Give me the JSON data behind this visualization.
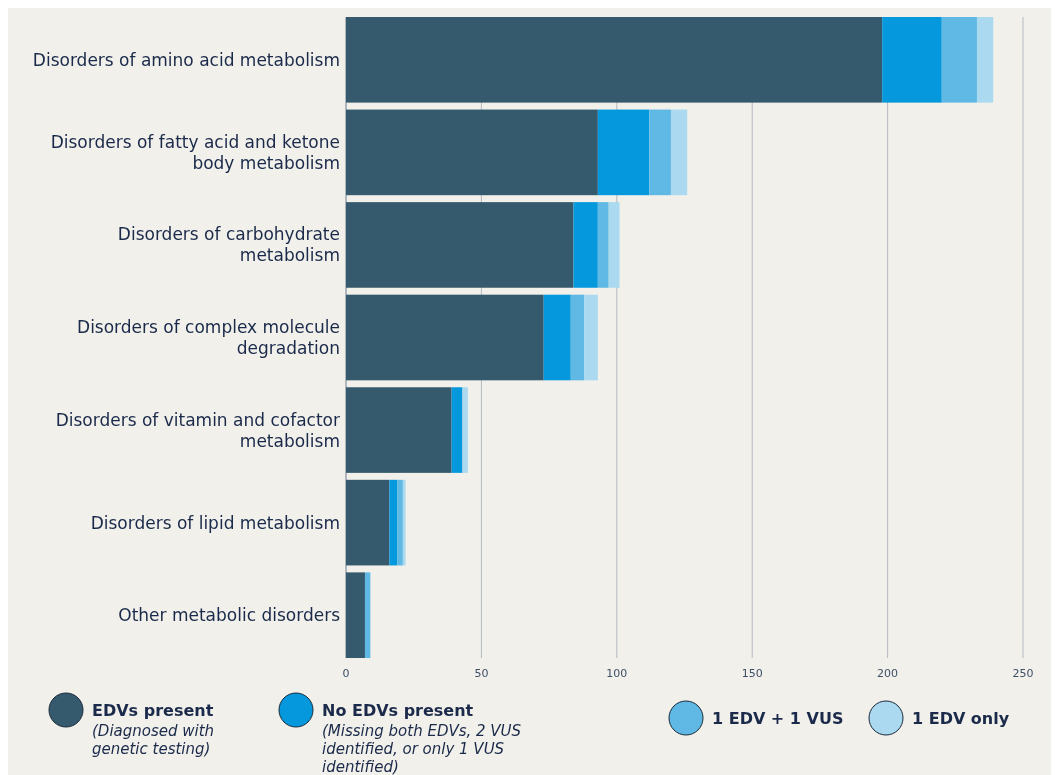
{
  "chart_data": {
    "type": "bar",
    "orientation": "horizontal",
    "stacked": true,
    "categories": [
      "Disorders of amino acid metabolism",
      "Disorders of fatty acid and ketone body metabolism",
      "Disorders of carbohydrate metabolism",
      "Disorders of complex molecule degradation",
      "Disorders of vitamin and cofactor metabolism",
      "Disorders of lipid metabolism",
      "Other metabolic disorders"
    ],
    "series": [
      {
        "name": "EDVs present",
        "color": "#365a6d",
        "values": [
          198,
          93,
          84,
          73,
          39,
          16,
          7
        ]
      },
      {
        "name": "No EDVs present",
        "color": "#0598dc",
        "values": [
          22,
          19,
          9,
          10,
          4,
          3,
          0
        ]
      },
      {
        "name": "1  EDV + 1 VUS",
        "color": "#5fb9e4",
        "values": [
          13,
          8,
          4,
          5,
          0,
          2,
          2
        ]
      },
      {
        "name": "1 EDV only",
        "color": "#abd9ef",
        "values": [
          6,
          6,
          4,
          5,
          2,
          1,
          0
        ]
      }
    ],
    "xlim": [
      0,
      250
    ],
    "xticks": [
      0,
      50,
      100,
      150,
      200,
      250
    ],
    "grid": "x",
    "legend": "bottom",
    "annotations": [
      "(Diagnosed with genetic testing)",
      "(Missing both EDVs, 2 VUS identified, or only 1 VUS identified)"
    ]
  }
}
